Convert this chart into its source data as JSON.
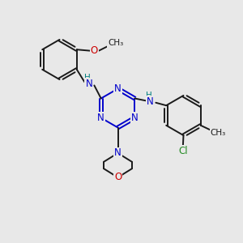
{
  "bg_color": "#e8e8e8",
  "bond_color": "#1a1a1a",
  "N_color": "#0000cc",
  "O_color": "#cc0000",
  "Cl_color": "#228b22",
  "H_color": "#008080",
  "lw": 1.4,
  "figsize": [
    3.0,
    3.0
  ],
  "dpi": 100,
  "xlim": [
    0,
    10
  ],
  "ylim": [
    0,
    10
  ]
}
